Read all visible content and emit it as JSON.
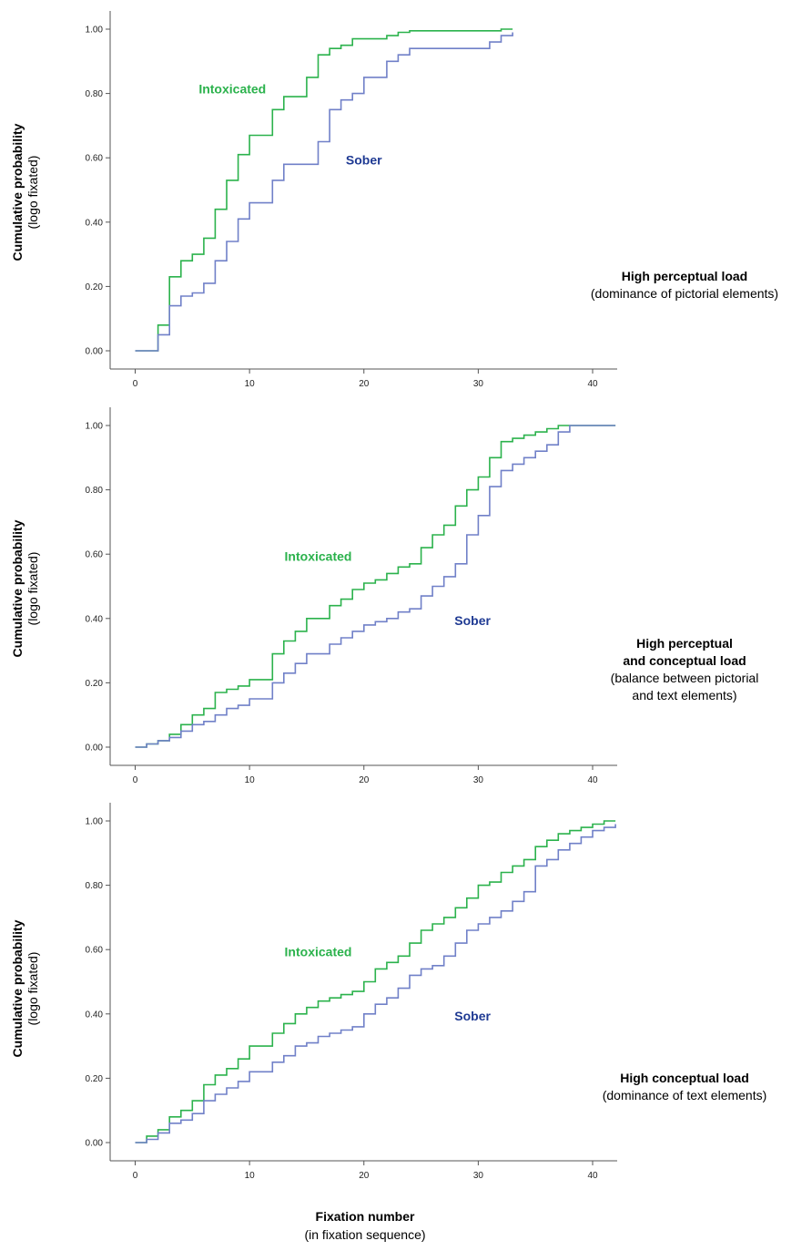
{
  "figure": {
    "xlabel_main": "Fixation number",
    "xlabel_sub": "(in fixation sequence)"
  },
  "colors": {
    "intoxicated": "#2bb24c",
    "sober": "#7080c8",
    "sober_label": "#1f3a93",
    "axis": "#555555"
  },
  "chart_data": [
    {
      "type": "line",
      "step": true,
      "title": "",
      "xlabel": "Fixation number (in fixation sequence)",
      "ylabel": "Cumulative probability",
      "ylabel_sub": "(logo fixated)",
      "xlim": [
        -2,
        42
      ],
      "ylim": [
        0,
        1
      ],
      "xticks": [
        "0",
        "10",
        "20",
        "30",
        "40"
      ],
      "yticks": [
        "0.00",
        "0.20",
        "0.40",
        "0.60",
        "0.80",
        "1.00"
      ],
      "note_lines": [
        "High perceptual load",
        "(dominance of pictorial elements)"
      ],
      "note_bold_count": 1,
      "series": [
        {
          "name": "Intoxicated",
          "x": [
            0,
            2,
            3,
            4,
            5,
            6,
            7,
            8,
            9,
            10,
            12,
            13,
            15,
            16,
            17,
            18,
            19,
            20,
            22,
            23,
            24,
            31,
            32,
            33
          ],
          "y": [
            0,
            0.08,
            0.23,
            0.28,
            0.3,
            0.35,
            0.44,
            0.53,
            0.61,
            0.67,
            0.75,
            0.79,
            0.85,
            0.92,
            0.94,
            0.95,
            0.97,
            0.97,
            0.98,
            0.99,
            0.995,
            0.995,
            1.0,
            1.0
          ],
          "label_x": 8.5,
          "label_y": 0.8
        },
        {
          "name": "Sober",
          "x": [
            0,
            2,
            3,
            4,
            5,
            6,
            7,
            8,
            9,
            10,
            11,
            12,
            13,
            15,
            16,
            17,
            18,
            19,
            20,
            21,
            22,
            23,
            24,
            31,
            32,
            33
          ],
          "y": [
            0,
            0.05,
            0.14,
            0.17,
            0.18,
            0.21,
            0.28,
            0.34,
            0.41,
            0.46,
            0.46,
            0.53,
            0.58,
            0.58,
            0.65,
            0.75,
            0.78,
            0.8,
            0.85,
            0.85,
            0.9,
            0.92,
            0.94,
            0.96,
            0.98,
            0.99
          ],
          "label_x": 20,
          "label_y": 0.58
        }
      ]
    },
    {
      "type": "line",
      "step": true,
      "title": "",
      "xlabel": "Fixation number (in fixation sequence)",
      "ylabel": "Cumulative probability",
      "ylabel_sub": "(logo fixated)",
      "xlim": [
        -2,
        42
      ],
      "ylim": [
        0,
        1
      ],
      "xticks": [
        "0",
        "10",
        "20",
        "30",
        "40"
      ],
      "yticks": [
        "0.00",
        "0.20",
        "0.40",
        "0.60",
        "0.80",
        "1.00"
      ],
      "note_lines": [
        "High perceptual",
        "and conceptual load",
        "(balance between pictorial",
        "and text elements)"
      ],
      "note_bold_count": 2,
      "series": [
        {
          "name": "Intoxicated",
          "x": [
            0,
            1,
            2,
            3,
            4,
            5,
            6,
            7,
            8,
            9,
            10,
            12,
            13,
            14,
            15,
            17,
            18,
            19,
            20,
            21,
            22,
            23,
            24,
            25,
            26,
            27,
            28,
            29,
            30,
            31,
            32,
            33,
            34,
            35,
            36,
            37,
            38,
            42
          ],
          "y": [
            0,
            0.01,
            0.02,
            0.04,
            0.07,
            0.1,
            0.12,
            0.17,
            0.18,
            0.19,
            0.21,
            0.29,
            0.33,
            0.36,
            0.4,
            0.44,
            0.46,
            0.49,
            0.51,
            0.52,
            0.54,
            0.56,
            0.57,
            0.62,
            0.66,
            0.69,
            0.75,
            0.8,
            0.84,
            0.9,
            0.95,
            0.96,
            0.97,
            0.98,
            0.99,
            1.0,
            1.0,
            1.0
          ],
          "label_x": 16,
          "label_y": 0.58
        },
        {
          "name": "Sober",
          "x": [
            0,
            1,
            2,
            3,
            4,
            5,
            6,
            7,
            8,
            9,
            10,
            12,
            13,
            14,
            15,
            17,
            18,
            19,
            20,
            21,
            22,
            23,
            24,
            25,
            26,
            27,
            28,
            29,
            30,
            31,
            32,
            33,
            34,
            35,
            36,
            37,
            38,
            42
          ],
          "y": [
            0,
            0.01,
            0.02,
            0.03,
            0.05,
            0.07,
            0.08,
            0.1,
            0.12,
            0.13,
            0.15,
            0.2,
            0.23,
            0.26,
            0.29,
            0.32,
            0.34,
            0.36,
            0.38,
            0.39,
            0.4,
            0.42,
            0.43,
            0.47,
            0.5,
            0.53,
            0.57,
            0.66,
            0.72,
            0.81,
            0.86,
            0.88,
            0.9,
            0.92,
            0.94,
            0.98,
            1.0,
            1.0
          ],
          "label_x": 29.5,
          "label_y": 0.38
        }
      ]
    },
    {
      "type": "line",
      "step": true,
      "title": "",
      "xlabel": "Fixation number (in fixation sequence)",
      "ylabel": "Cumulative probability",
      "ylabel_sub": "(logo fixated)",
      "xlim": [
        -2,
        42
      ],
      "ylim": [
        0,
        1
      ],
      "xticks": [
        "0",
        "10",
        "20",
        "30",
        "40"
      ],
      "yticks": [
        "0.00",
        "0.20",
        "0.40",
        "0.60",
        "0.80",
        "1.00"
      ],
      "note_lines": [
        "High conceptual load",
        "(dominance of text elements)"
      ],
      "note_bold_count": 1,
      "series": [
        {
          "name": "Intoxicated",
          "x": [
            0,
            1,
            2,
            3,
            4,
            5,
            6,
            7,
            8,
            9,
            10,
            12,
            13,
            14,
            15,
            16,
            17,
            18,
            19,
            20,
            21,
            22,
            23,
            24,
            25,
            26,
            27,
            28,
            29,
            30,
            31,
            32,
            33,
            34,
            35,
            36,
            37,
            38,
            39,
            40,
            41,
            42
          ],
          "y": [
            0,
            0.02,
            0.04,
            0.08,
            0.1,
            0.13,
            0.18,
            0.21,
            0.23,
            0.26,
            0.3,
            0.34,
            0.37,
            0.4,
            0.42,
            0.44,
            0.45,
            0.46,
            0.47,
            0.5,
            0.54,
            0.56,
            0.58,
            0.62,
            0.66,
            0.68,
            0.7,
            0.73,
            0.76,
            0.8,
            0.81,
            0.84,
            0.86,
            0.88,
            0.92,
            0.94,
            0.96,
            0.97,
            0.98,
            0.99,
            1.0,
            1.0
          ],
          "label_x": 16,
          "label_y": 0.58
        },
        {
          "name": "Sober",
          "x": [
            0,
            1,
            2,
            3,
            4,
            5,
            6,
            7,
            8,
            9,
            10,
            12,
            13,
            14,
            15,
            16,
            17,
            18,
            19,
            20,
            21,
            22,
            23,
            24,
            25,
            26,
            27,
            28,
            29,
            30,
            31,
            32,
            33,
            34,
            35,
            36,
            37,
            38,
            39,
            40,
            41,
            42
          ],
          "y": [
            0,
            0.01,
            0.03,
            0.06,
            0.07,
            0.09,
            0.13,
            0.15,
            0.17,
            0.19,
            0.22,
            0.25,
            0.27,
            0.3,
            0.31,
            0.33,
            0.34,
            0.35,
            0.36,
            0.4,
            0.43,
            0.45,
            0.48,
            0.52,
            0.54,
            0.55,
            0.58,
            0.62,
            0.66,
            0.68,
            0.7,
            0.72,
            0.75,
            0.78,
            0.86,
            0.88,
            0.91,
            0.93,
            0.95,
            0.97,
            0.98,
            0.99
          ],
          "label_x": 29.5,
          "label_y": 0.38
        }
      ]
    }
  ]
}
